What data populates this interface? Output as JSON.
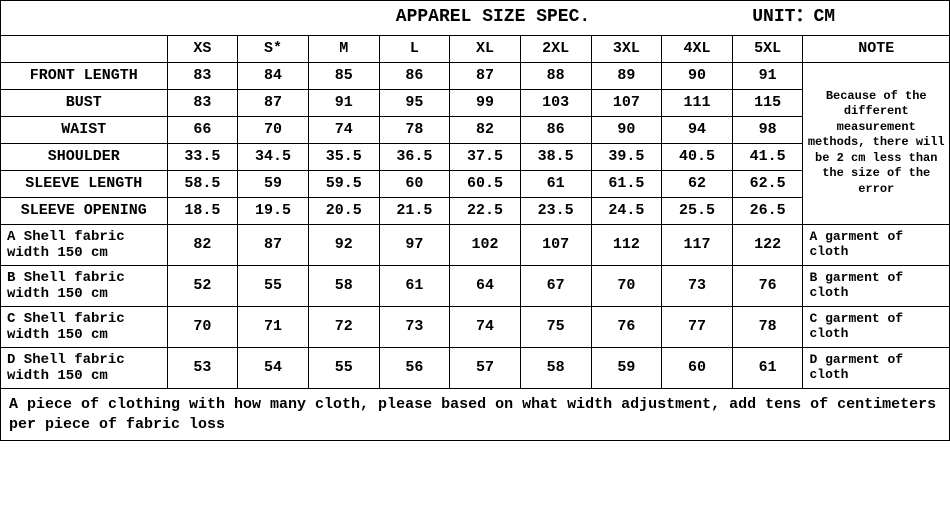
{
  "title_left": "APPAREL SIZE SPEC.",
  "title_right": "UNIT：CM",
  "sizes": [
    "XS",
    "S*",
    "M",
    "L",
    "XL",
    "2XL",
    "3XL",
    "4XL",
    "5XL"
  ],
  "note_header": "NOTE",
  "rows": [
    {
      "label": "FRONT LENGTH",
      "v": [
        "83",
        "84",
        "85",
        "86",
        "87",
        "88",
        "89",
        "90",
        "91"
      ]
    },
    {
      "label": "BUST",
      "v": [
        "83",
        "87",
        "91",
        "95",
        "99",
        "103",
        "107",
        "111",
        "115"
      ]
    },
    {
      "label": "WAIST",
      "v": [
        "66",
        "70",
        "74",
        "78",
        "82",
        "86",
        "90",
        "94",
        "98"
      ]
    },
    {
      "label": "SHOULDER",
      "v": [
        "33.5",
        "34.5",
        "35.5",
        "36.5",
        "37.5",
        "38.5",
        "39.5",
        "40.5",
        "41.5"
      ]
    },
    {
      "label": "SLEEVE LENGTH",
      "v": [
        "58.5",
        "59",
        "59.5",
        "60",
        "60.5",
        "61",
        "61.5",
        "62",
        "62.5"
      ]
    },
    {
      "label": "SLEEVE OPENING",
      "v": [
        "18.5",
        "19.5",
        "20.5",
        "21.5",
        "22.5",
        "23.5",
        "24.5",
        "25.5",
        "26.5"
      ]
    }
  ],
  "note_body": "Because of the different measurement methods, there will be 2 cm less than the size of the error",
  "fabric_rows": [
    {
      "label": "A Shell fabric width 150 cm",
      "v": [
        "82",
        "87",
        "92",
        "97",
        "102",
        "107",
        "112",
        "117",
        "122"
      ],
      "note": "A garment of cloth"
    },
    {
      "label": "B Shell fabric width 150 cm",
      "v": [
        "52",
        "55",
        "58",
        "61",
        "64",
        "67",
        "70",
        "73",
        "76"
      ],
      "note": "B garment of cloth"
    },
    {
      "label": "C Shell fabric width 150 cm",
      "v": [
        "70",
        "71",
        "72",
        "73",
        "74",
        "75",
        "76",
        "77",
        "78"
      ],
      "note": "C garment of cloth"
    },
    {
      "label": "D Shell fabric width 150 cm",
      "v": [
        "53",
        "54",
        "55",
        "56",
        "57",
        "58",
        "59",
        "60",
        "61"
      ],
      "note": "D garment of cloth"
    }
  ],
  "footer": "A piece of clothing with how many cloth, please based on what width adjustment, add tens of centimeters per piece of fabric loss",
  "colors": {
    "border": "#000000",
    "background": "#ffffff",
    "text": "#000000"
  }
}
